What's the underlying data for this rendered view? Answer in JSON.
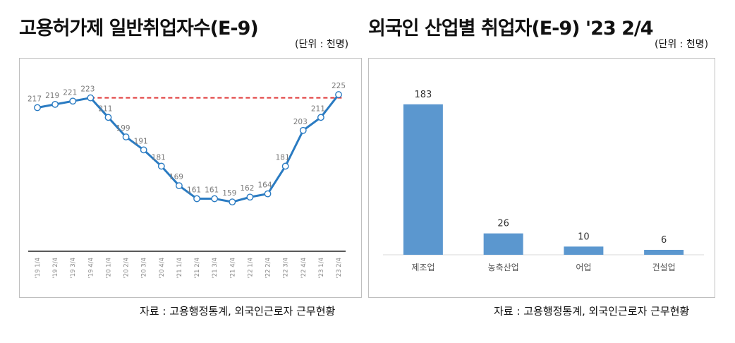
{
  "left": {
    "title": "고용허가제 일반취업자수(E-9)",
    "unit": "(단위 : 천명)",
    "source": "자료 : 고용행정통계, 외국인근로자 근무현황",
    "chart_data": {
      "type": "line",
      "categories": [
        "'19 1/4",
        "'19 2/4",
        "'19 3/4",
        "'19 4/4",
        "'20 1/4",
        "'20 2/4",
        "'20 3/4",
        "'20 4/4",
        "'21 1/4",
        "'21 2/4",
        "'21 3/4",
        "'21 4/4",
        "'22 1/4",
        "'22 2/4",
        "'22 3/4",
        "'22 4/4",
        "'23 1/4",
        "'23 2/4"
      ],
      "series": [
        {
          "values": [
            217,
            219,
            221,
            223,
            211,
            199,
            191,
            181,
            169,
            161,
            161,
            159,
            162,
            164,
            181,
            203,
            211,
            225
          ]
        }
      ],
      "reference_line": {
        "value": 223,
        "style": "dashed",
        "color": "#e03a3a"
      },
      "ylim": [
        130,
        235
      ],
      "line_color": "#2a7bc2"
    }
  },
  "right": {
    "title": "외국인 산업별 취업자(E-9) '23 2/4",
    "unit": "(단위 : 천명)",
    "source": "자료 : 고용행정통계, 외국인근로자 근무현황",
    "chart_data": {
      "type": "bar",
      "categories": [
        "제조업",
        "농축산업",
        "어업",
        "건설업"
      ],
      "values": [
        183,
        26,
        10,
        6
      ],
      "ylim": [
        0,
        200
      ],
      "bar_color": "#5b97cf"
    }
  }
}
